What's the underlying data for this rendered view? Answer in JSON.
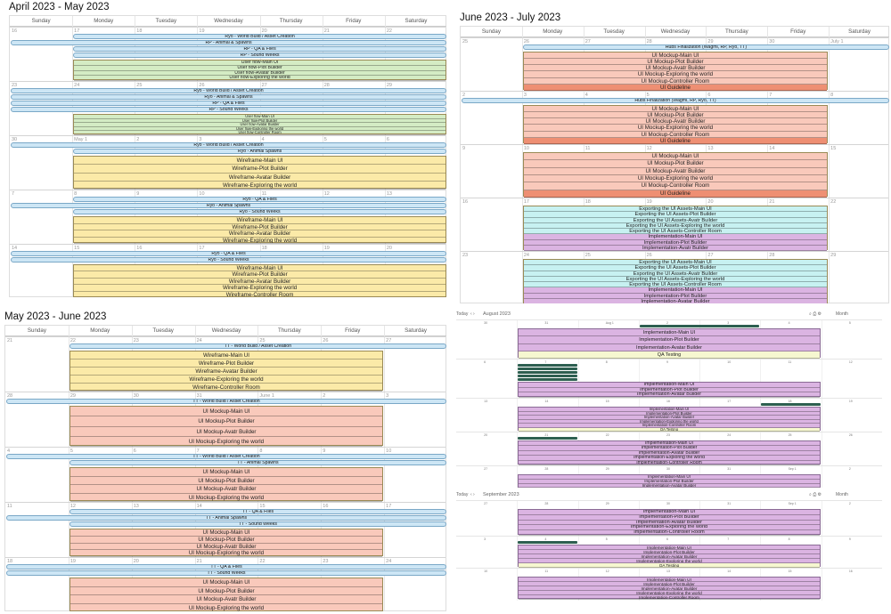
{
  "colors": {
    "blue": "#cde6f5",
    "green": "#d4ecc4",
    "yellow": "#fbeaa8",
    "salmon": "#f9c9bb",
    "salmon_dark": "#ee8f73",
    "cyan": "#c7f1f1",
    "purple": "#dbb4e2",
    "cream": "#f6f7d0",
    "dark_green": "#2d5f50"
  },
  "days": [
    "Sunday",
    "Monday",
    "Tuesday",
    "Wednesday",
    "Thursday",
    "Friday",
    "Saturday"
  ],
  "panels": [
    {
      "title": "April 2023 - May 2023",
      "weeks": [
        {
          "nums": [
            "16",
            "17",
            "18",
            "19",
            "20",
            "21",
            "22"
          ],
          "h": 61,
          "bars": [
            {
              "label": "Ryo - World Build / Asset Creation",
              "s": 1,
              "e": 6
            },
            {
              "label": "RP - Animal & Spawns",
              "s": 0,
              "e": 6
            },
            {
              "label": "RP - QA & Flies",
              "s": 1,
              "e": 6
            },
            {
              "label": "RP - Sound Weeks",
              "s": 1,
              "e": 6
            }
          ],
          "box": {
            "s": 1,
            "e": 6,
            "color": "green",
            "lines": [
              "User flow-Main UI",
              "User flow-Plot Builder",
              "User flow-Avatar Builder",
              "User flow-Exploring the world"
            ]
          }
        },
        {
          "nums": [
            "23",
            "24",
            "25",
            "26",
            "27",
            "28",
            "29"
          ],
          "h": 61,
          "bars": [
            {
              "label": "Ryo - World Build / Asset Creation",
              "s": 0,
              "e": 6
            },
            {
              "label": "Ryo - Animal & Spawns",
              "s": 0,
              "e": 6
            },
            {
              "label": "RP - QA & Flies",
              "s": 0,
              "e": 6
            },
            {
              "label": "RP - Sound Weeks",
              "s": 0,
              "e": 6
            }
          ],
          "box": {
            "s": 1,
            "e": 6,
            "color": "green",
            "lines": [
              "User flow-Main UI",
              "User flow-Plot Builder",
              "User flow-Avatar Builder",
              "User flow-Exploring the world",
              "User flow-Controller Room"
            ]
          }
        },
        {
          "nums": [
            "30",
            "May 1",
            "2",
            "3",
            "4",
            "5",
            "6"
          ],
          "h": 61,
          "bars": [
            {
              "label": "Ryo - World Build / Asset Creation",
              "s": 0,
              "e": 6
            },
            {
              "label": "Ryo - Animal Spawns",
              "s": 1,
              "e": 6
            }
          ],
          "box": {
            "s": 1,
            "e": 6,
            "color": "yellow",
            "lines": [
              "Wireframe-Main UI",
              "Wireframe-Plot Builder",
              "Wireframe-Avatar Builder",
              "Wireframe-Exploring the world"
            ]
          }
        },
        {
          "nums": [
            "7",
            "8",
            "9",
            "10",
            "11",
            "12",
            "13"
          ],
          "h": 61,
          "bars": [
            {
              "label": "Ryo - QA & Flies",
              "s": 1,
              "e": 6
            },
            {
              "label": "Ryo - Animal Spawns",
              "s": 0,
              "e": 6
            },
            {
              "label": "Ryo - Sound Weeks",
              "s": 1,
              "e": 6
            }
          ],
          "box": {
            "s": 1,
            "e": 6,
            "color": "yellow",
            "lines": [
              "Wireframe-Main UI",
              "Wireframe-Plot Builder",
              "Wireframe-Avatar Builder",
              "Wireframe-Exploring the world"
            ]
          }
        },
        {
          "nums": [
            "14",
            "15",
            "16",
            "17",
            "18",
            "19",
            "20"
          ],
          "h": 61,
          "bars": [
            {
              "label": "Ryo - QA & Flies",
              "s": 0,
              "e": 6
            },
            {
              "label": "Ryo - Sound Weeks",
              "s": 0,
              "e": 6
            }
          ],
          "box": {
            "s": 1,
            "e": 6,
            "color": "yellow",
            "lines": [
              "Wireframe-Main UI",
              "Wireframe-Plot Builder",
              "Wireframe-Avatar Builder",
              "Wireframe-Exploring the world",
              "Wireframe-Controller Room"
            ]
          }
        }
      ]
    },
    {
      "title": "June 2023 - July 2023",
      "weeks": [
        {
          "nums": [
            "25",
            "26",
            "27",
            "28",
            "29",
            "30",
            "July 1"
          ],
          "h": 60,
          "bars": [
            {
              "label": "Hubs Finalization (Wagmi, RP, Ryo, TT)",
              "s": 1,
              "e": 6
            }
          ],
          "box": {
            "s": 1,
            "e": 5,
            "color": "salmon",
            "dark_last": true,
            "lines": [
              "UI Mockup-Main UI",
              "UI Mockup-Plot Builder",
              "UI Mockup-Avatr Builder",
              "UI Mockup-Exploring the world",
              "UI Mockup-Controller Room",
              "UI Guideline"
            ]
          }
        },
        {
          "nums": [
            "2",
            "3",
            "4",
            "5",
            "6",
            "7",
            "8"
          ],
          "h": 60,
          "bars": [
            {
              "label": "Hubs Finalization (Wagmi, RP, Ryo, TT)",
              "s": 0,
              "e": 6
            }
          ],
          "box": {
            "s": 1,
            "e": 5,
            "color": "salmon",
            "dark_last": true,
            "lines": [
              "UI Mockup-Main UI",
              "UI Mockup-Plot Builder",
              "UI Mockup-Avatr Builder",
              "UI Mockup-Exploring the world",
              "UI Mockup-Controller Room",
              "UI Guideline"
            ]
          }
        },
        {
          "nums": [
            "9",
            "10",
            "11",
            "12",
            "13",
            "14",
            "15"
          ],
          "h": 60,
          "bars": [],
          "box": {
            "s": 1,
            "e": 5,
            "color": "salmon",
            "dark_last": true,
            "lines": [
              "UI Mockup-Main UI",
              "UI Mockup-Plot Builder",
              "UI Mockup-Avatr Builder",
              "UI Mockup-Exploring the world",
              "UI Mockup-Controller Room",
              "UI Guideline"
            ]
          }
        },
        {
          "nums": [
            "16",
            "17",
            "18",
            "19",
            "20",
            "21",
            "22"
          ],
          "h": 60,
          "bars": [],
          "box": {
            "s": 1,
            "e": 5,
            "color": "cyan",
            "lines": [
              "Exporting the UI Assets-Main UI",
              "Exporting the UI Assets-Plot Builder",
              "Exporting the UI Assets-Avatr Builder",
              "Exporting the UI Assets-Exploring the world",
              "Exporting the UI Assets-Controller Room",
              "Implementation-Main UI",
              "Implementation-Plot Builder",
              "Implementation-Avatr Builder"
            ],
            "purple_from": 5
          }
        },
        {
          "nums": [
            "23",
            "24",
            "25",
            "26",
            "27",
            "28",
            "29"
          ],
          "h": 60,
          "bars": [],
          "box": {
            "s": 1,
            "e": 5,
            "color": "cyan",
            "lines": [
              "Exporting the UI Assets-Main UI",
              "Exporting the UI Assets-Plot Builder",
              "Exporting the UI Assets-Avatr Builder",
              "Exporting the UI Assets-Exploring the world",
              "Exporting the UI Assets-Controller Room",
              "Implementation-Main UI",
              "Implementation-Plot Builder",
              "Implementation-Avatar Builder"
            ],
            "purple_from": 5
          }
        }
      ]
    },
    {
      "title": "May 2023 - June 2023",
      "weeks": [
        {
          "nums": [
            "21",
            "22",
            "23",
            "24",
            "25",
            "26",
            "27"
          ],
          "h": 62,
          "bars": [
            {
              "label": "TT - World Build / Asset Creation",
              "s": 1,
              "e": 6
            }
          ],
          "box": {
            "s": 1,
            "e": 5,
            "color": "yellow",
            "lines": [
              "Wireframe-Main UI",
              "Wireframe-Plot Builder",
              "Wireframe-Avatar Builder",
              "Wireframe-Exploring the world",
              "Wireframe-Controller Room"
            ]
          }
        },
        {
          "nums": [
            "28",
            "29",
            "30",
            "31",
            "June 1",
            "2",
            "3"
          ],
          "h": 62,
          "bars": [
            {
              "label": "TT - World Build / Asset Creation",
              "s": 0,
              "e": 6
            }
          ],
          "box": {
            "s": 1,
            "e": 5,
            "color": "salmon",
            "lines": [
              "UI Mockup-Main UI",
              "UI Mockup-Plot Builder",
              "UI Mockup-Avatr Builder",
              "UI Mockup-Exploring the world"
            ]
          }
        },
        {
          "nums": [
            "4",
            "5",
            "6",
            "7",
            "8",
            "9",
            "10"
          ],
          "h": 62,
          "bars": [
            {
              "label": "TT - World Build / Asset Creation",
              "s": 0,
              "e": 6
            },
            {
              "label": "TT - Animal Spawns",
              "s": 1,
              "e": 6
            }
          ],
          "box": {
            "s": 1,
            "e": 5,
            "color": "salmon",
            "lines": [
              "UI Mockup-Main UI",
              "UI Mockup-Plot Builder",
              "UI Mockup-Avatr Builder",
              "UI Mockup-Exploring the world"
            ]
          }
        },
        {
          "nums": [
            "11",
            "12",
            "13",
            "14",
            "15",
            "16",
            "17"
          ],
          "h": 62,
          "bars": [
            {
              "label": "TT - QA & Flies",
              "s": 1,
              "e": 6
            },
            {
              "label": "TT - Animal Spawns",
              "s": 0,
              "e": 6
            },
            {
              "label": "TT - Sound Weeks",
              "s": 1,
              "e": 6
            }
          ],
          "box": {
            "s": 1,
            "e": 5,
            "color": "salmon",
            "lines": [
              "UI Mockup-Main UI",
              "UI Mockup-Plot Builder",
              "UI Mockup-Avatr Builder",
              "UI Mockup-Exploring the world"
            ]
          }
        },
        {
          "nums": [
            "18",
            "19",
            "20",
            "21",
            "22",
            "23",
            "24"
          ],
          "h": 62,
          "bars": [
            {
              "label": "TT - QA & Flies",
              "s": 0,
              "e": 6
            },
            {
              "label": "TT - Sound Weeks",
              "s": 0,
              "e": 6
            }
          ],
          "box": {
            "s": 1,
            "e": 5,
            "color": "salmon",
            "lines": [
              "UI Mockup-Main UI",
              "UI Mockup-Plot Builder",
              "UI Mockup-Avatr Builder",
              "UI Mockup-Exploring the world"
            ]
          }
        }
      ]
    }
  ],
  "mini": [
    {
      "title": "August 2023",
      "today": "Today",
      "view": "Month",
      "weeks": [
        {
          "nums": [
            "30",
            "31",
            "Aug 1",
            "2",
            "3",
            "4",
            "5"
          ],
          "h": 44,
          "green": [
            {
              "s": 3,
              "e": 4
            }
          ],
          "box": {
            "s": 1,
            "e": 5,
            "color": "purple",
            "lines": [
              "Implementation-Main UI",
              "Implementation-Plot Builder",
              "Implementation-Avatar Builder",
              "QA Testing"
            ],
            "cream_last": true
          }
        },
        {
          "nums": [
            "6",
            "7",
            "8",
            "9",
            "10",
            "11",
            "12"
          ],
          "h": 44,
          "green": [
            {
              "s": 1,
              "e": 1
            },
            {
              "s": 1,
              "e": 1
            },
            {
              "s": 1,
              "e": 1
            },
            {
              "s": 1,
              "e": 1
            },
            {
              "s": 1,
              "e": 1
            }
          ],
          "box": {
            "s": 1,
            "e": 5,
            "color": "purple",
            "lines": [
              "Implementation-Main UI",
              "Implementation-Plot Builder",
              "Implementation-Avatar Builder"
            ]
          }
        },
        {
          "nums": [
            "13",
            "14",
            "15",
            "16",
            "17",
            "18",
            "19"
          ],
          "h": 38,
          "green": [
            {
              "s": 5,
              "e": 5
            }
          ],
          "box": {
            "s": 1,
            "e": 5,
            "color": "purple",
            "lines": [
              "Implementation-Main UI",
              "Implementation-Plot Builder",
              "Implementation-Avatar Builder",
              "Implementation-Exploring the world",
              "Implementation-Controller Room",
              "QA Testing"
            ],
            "cream_last": true
          }
        },
        {
          "nums": [
            "20",
            "21",
            "22",
            "23",
            "24",
            "25",
            "26"
          ],
          "h": 38,
          "green": [
            {
              "s": 1,
              "e": 1
            }
          ],
          "box": {
            "s": 1,
            "e": 5,
            "color": "purple",
            "lines": [
              "Implementation-Main UI",
              "Implementation-Plot Builder",
              "Implementation-Avatar Builder",
              "Implementation-Exploring the world",
              "Implementation-Controller Room"
            ]
          }
        },
        {
          "nums": [
            "27",
            "28",
            "29",
            "30",
            "31",
            "Sep 1",
            "2"
          ],
          "h": 40,
          "green": [],
          "box": {
            "s": 1,
            "e": 5,
            "color": "purple",
            "lines": [
              "Implementation-Main UI",
              "Implementation-Plot Builder",
              "Implementation-Avatar Builder",
              "Implementation-Exploring the world",
              "Implementation-Controller Room",
              "QA Testing"
            ],
            "cream_last": true
          }
        }
      ]
    },
    {
      "title": "September 2023",
      "today": "Today",
      "view": "Month",
      "weeks": [
        {
          "nums": [
            "27",
            "28",
            "29",
            "30",
            "31",
            "Sep 1",
            "2"
          ],
          "h": 40,
          "green": [],
          "box": {
            "s": 1,
            "e": 5,
            "color": "purple",
            "lines": [
              "Implementation-Main UI",
              "Implementation-Plot Builder",
              "Implementation-Avatar Builder",
              "Implementation-Exploring the world",
              "Implementation-Controller Room"
            ]
          }
        },
        {
          "nums": [
            "3",
            "4",
            "5",
            "6",
            "7",
            "8",
            "9"
          ],
          "h": 36,
          "green": [
            {
              "s": 1,
              "e": 1
            }
          ],
          "box": {
            "s": 1,
            "e": 5,
            "color": "purple",
            "lines": [
              "Implementation-Main UI",
              "Implementation-Plot Builder",
              "Implementation-Avatar Builder",
              "Implementation-Exploring the world",
              "QA Testing"
            ],
            "cream_last": true
          }
        },
        {
          "nums": [
            "10",
            "11",
            "12",
            "13",
            "14",
            "15",
            "16"
          ],
          "h": 36,
          "green": [],
          "box": {
            "s": 1,
            "e": 5,
            "color": "purple",
            "lines": [
              "Implementation-Main UI",
              "Implementation-Plot Builder",
              "Implementation-Avatar Builder",
              "Implementation-Exploring the world",
              "Implementation-Controller Room"
            ]
          }
        }
      ]
    }
  ]
}
